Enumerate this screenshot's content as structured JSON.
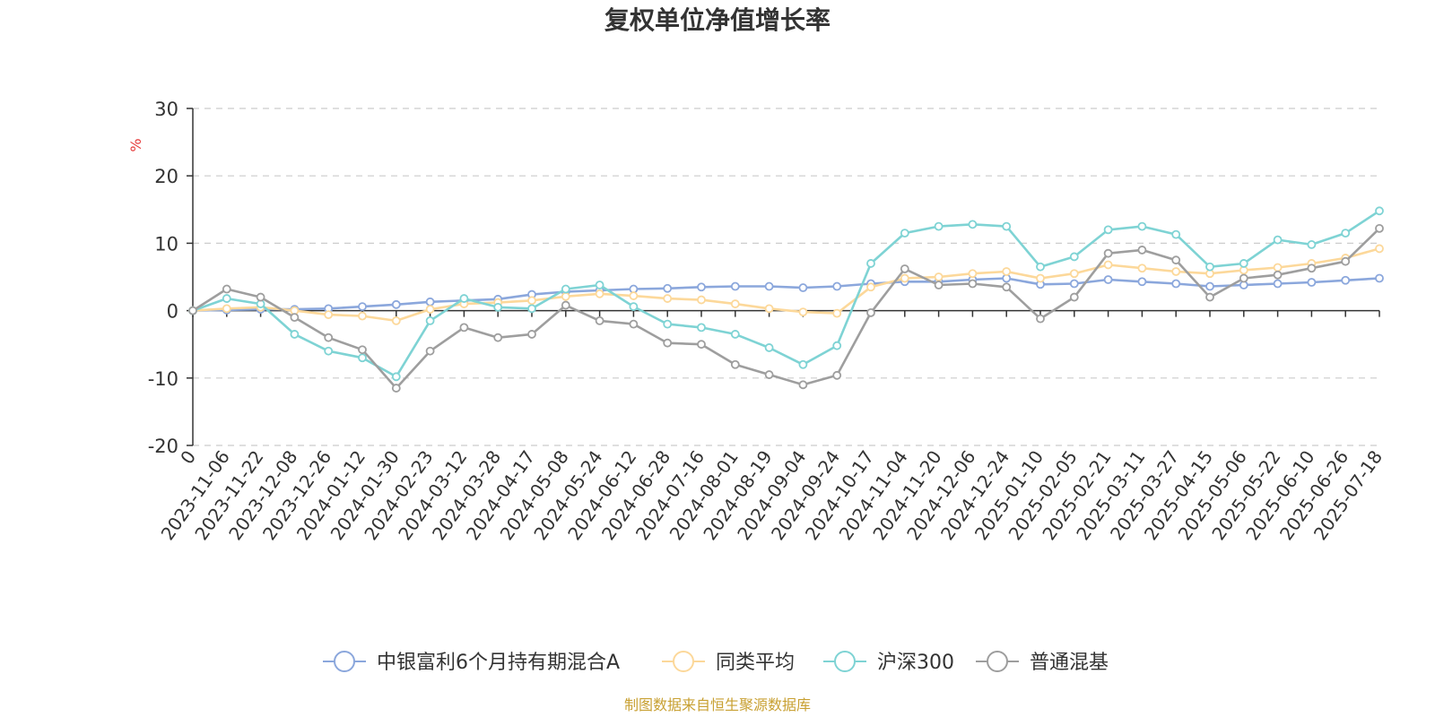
{
  "chart_data": {
    "type": "line",
    "title": "复权单位净值增长率",
    "y_unit": "%",
    "ylim": [
      -20,
      30
    ],
    "y_ticks": [
      "30",
      "20",
      "10",
      "0",
      "-10",
      "-20"
    ],
    "y_tick_values": [
      30,
      20,
      10,
      0,
      -10,
      -20
    ],
    "x_labels": [
      "0",
      "2023-11-06",
      "2023-11-22",
      "2023-12-08",
      "2023-12-26",
      "2024-01-12",
      "2024-01-30",
      "2024-02-23",
      "2024-03-12",
      "2024-03-28",
      "2024-04-17",
      "2024-05-08",
      "2024-05-24",
      "2024-06-12",
      "2024-06-28",
      "2024-07-16",
      "2024-08-01",
      "2024-08-19",
      "2024-09-04",
      "2024-09-24",
      "2024-10-17",
      "2024-11-04",
      "2024-11-20",
      "2024-12-06",
      "2024-12-24",
      "2025-01-10",
      "2025-02-05",
      "2025-02-21",
      "2025-03-11",
      "2025-03-27",
      "2025-04-15",
      "2025-05-06",
      "2025-05-22",
      "2025-06-10",
      "2025-06-26",
      "2025-07-18"
    ],
    "grid": "dashed horizontal",
    "legend_position": "bottom",
    "series": [
      {
        "name": "中银富利6个月持有期混合A",
        "color": "#8ba7dc",
        "values": [
          0,
          0.1,
          0.2,
          0.2,
          0.3,
          0.6,
          0.9,
          1.3,
          1.5,
          1.7,
          2.4,
          2.8,
          3.0,
          3.2,
          3.3,
          3.5,
          3.6,
          3.6,
          3.4,
          3.6,
          4.0,
          4.3,
          4.3,
          4.6,
          4.8,
          3.9,
          4.0,
          4.6,
          4.3,
          4.0,
          3.6,
          3.8,
          4.0,
          4.2,
          4.5,
          4.8
        ]
      },
      {
        "name": "同类平均",
        "color": "#fcd89a",
        "values": [
          0,
          0.3,
          0.5,
          0,
          -0.6,
          -0.8,
          -1.5,
          0.2,
          1.0,
          1.2,
          1.5,
          2.1,
          2.5,
          2.2,
          1.8,
          1.6,
          1.0,
          0.3,
          -0.2,
          -0.4,
          3.5,
          4.8,
          5.0,
          5.5,
          5.8,
          4.8,
          5.5,
          6.8,
          6.3,
          5.8,
          5.5,
          6.0,
          6.4,
          7.0,
          7.8,
          9.2
        ]
      },
      {
        "name": "沪深300",
        "color": "#7ed3d4",
        "values": [
          0,
          1.8,
          1.0,
          -3.5,
          -6.0,
          -7.0,
          -9.8,
          -1.5,
          1.8,
          0.5,
          0.3,
          3.2,
          3.8,
          0.6,
          -2.0,
          -2.5,
          -3.5,
          -5.5,
          -8.0,
          -5.2,
          7.0,
          11.5,
          12.5,
          12.8,
          12.5,
          6.5,
          8.0,
          12.0,
          12.5,
          11.3,
          6.5,
          7.0,
          10.5,
          9.8,
          11.5,
          14.8
        ]
      },
      {
        "name": "普通混基",
        "color": "#9e9e9e",
        "values": [
          0,
          3.2,
          2.0,
          -1.0,
          -4.0,
          -5.8,
          -11.5,
          -6.0,
          -2.5,
          -4.0,
          -3.5,
          0.8,
          -1.5,
          -2.0,
          -4.8,
          -5.0,
          -8.0,
          -9.5,
          -11.0,
          -9.6,
          -0.3,
          6.2,
          3.8,
          4.0,
          3.5,
          -1.2,
          2.0,
          8.5,
          9.0,
          7.5,
          2.0,
          4.8,
          5.3,
          6.3,
          7.3,
          12.2
        ]
      }
    ]
  },
  "source_note": "制图数据来自恒生聚源数据库",
  "colors": {
    "axis": "#333333",
    "grid": "#cccccc",
    "unit": "#e63a3a",
    "source": "#c8a032"
  }
}
